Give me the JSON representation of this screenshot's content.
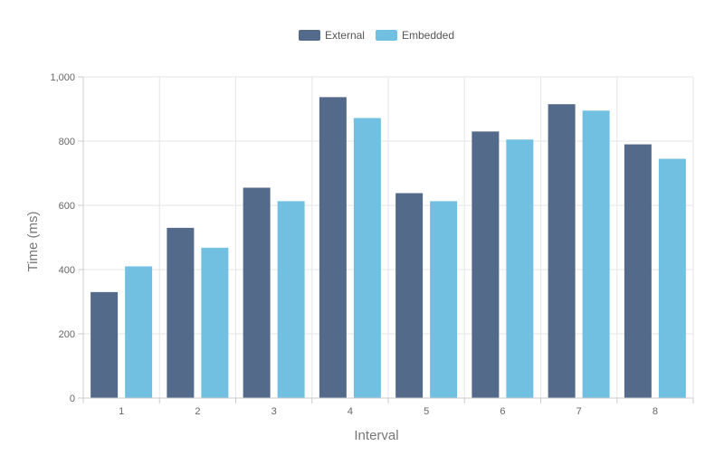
{
  "chart_data": {
    "type": "bar",
    "categories": [
      "1",
      "2",
      "3",
      "4",
      "5",
      "6",
      "7",
      "8"
    ],
    "series": [
      {
        "name": "External",
        "color": "#546a8b",
        "values": [
          330,
          530,
          655,
          937,
          638,
          830,
          915,
          790
        ]
      },
      {
        "name": "Embedded",
        "color": "#72c0e1",
        "values": [
          410,
          468,
          613,
          872,
          613,
          805,
          895,
          745
        ]
      }
    ],
    "title": "",
    "xlabel": "Interval",
    "ylabel": "Time (ms)",
    "ylim": [
      0,
      1000
    ],
    "yticks": [
      0,
      200,
      400,
      600,
      800,
      1000
    ],
    "ytick_labels": [
      "0",
      "200",
      "400",
      "600",
      "800",
      "1,000"
    ],
    "grid": true,
    "legend_position": "top-center"
  }
}
